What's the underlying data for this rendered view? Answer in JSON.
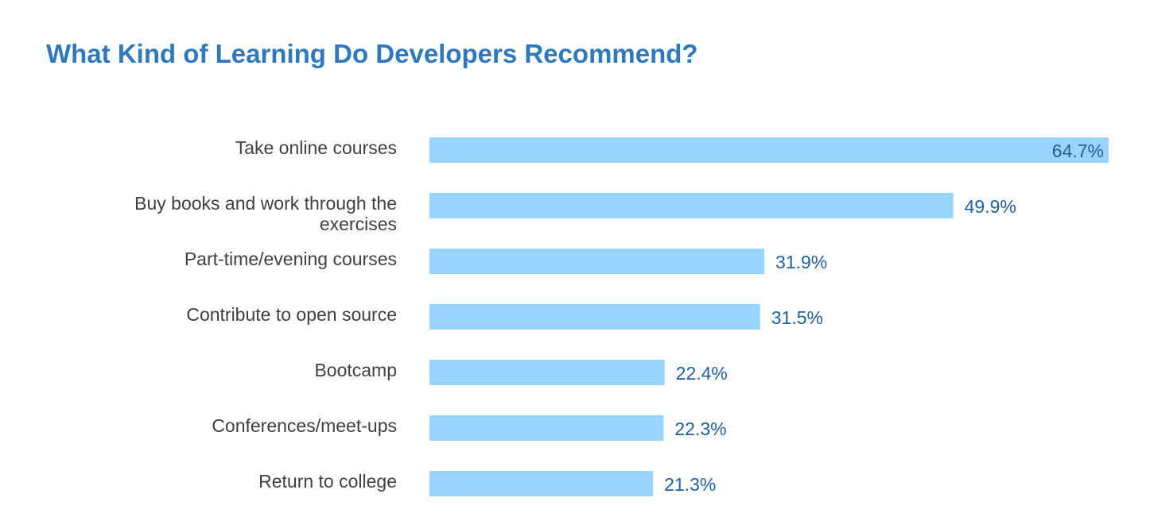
{
  "colors": {
    "title": "#2f78bd",
    "bar": "#99d4ff",
    "value_label": "#1f5f9a",
    "category_label": "#404040"
  },
  "chart_data": {
    "type": "bar",
    "orientation": "horizontal",
    "title": "What Kind of Learning Do Developers Recommend?",
    "categories": [
      "Take online courses",
      "Buy books and work through the exercises",
      "Part-time/evening courses",
      "Contribute to open source",
      "Bootcamp",
      "Conferences/meet-ups",
      "Return to college"
    ],
    "values": [
      64.7,
      49.9,
      31.9,
      31.5,
      22.4,
      22.3,
      21.3
    ],
    "value_labels": [
      "64.7%",
      "49.9%",
      "31.9%",
      "31.5%",
      "22.4%",
      "22.3%",
      "21.3%"
    ],
    "category_lines": [
      [
        "Take online courses"
      ],
      [
        "Buy books and work through the",
        "exercises"
      ],
      [
        "Part-time/evening courses"
      ],
      [
        "Contribute to open source"
      ],
      [
        "Bootcamp"
      ],
      [
        "Conferences/meet-ups"
      ],
      [
        "Return to college"
      ]
    ],
    "xlim": [
      0,
      64.7
    ],
    "value_label_inside_first_bar": true,
    "grid": false,
    "legend": "none",
    "xlabel": "",
    "ylabel": ""
  }
}
